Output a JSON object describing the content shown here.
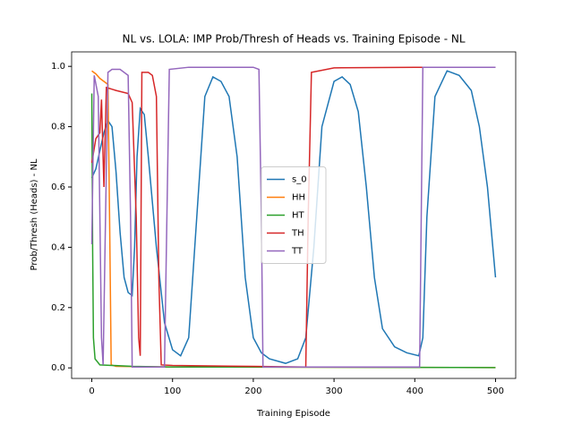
{
  "chart_data": {
    "type": "line",
    "title": "NL vs. LOLA: IMP Prob/Thresh of Heads vs. Training Episode - NL",
    "x_label": "Training Episode",
    "y_label": "Prob/Thresh (Heads) - NL",
    "xlim": [
      -25,
      525
    ],
    "ylim": [
      -0.035,
      1.048
    ],
    "xticks": [
      0,
      100,
      200,
      300,
      400,
      500
    ],
    "yticks": [
      {
        "value": 0,
        "label": "0.0"
      },
      {
        "value": 0.2,
        "label": "0.2"
      },
      {
        "value": 0.4,
        "label": "0.4"
      },
      {
        "value": 0.6,
        "label": "0.6"
      },
      {
        "value": 0.8,
        "label": "0.8"
      },
      {
        "value": 1,
        "label": "1.0"
      }
    ],
    "legend": "center",
    "series": [
      {
        "name": "s_0",
        "color": "#1f77b4",
        "x": [
          0,
          5,
          10,
          15,
          20,
          25,
          30,
          35,
          40,
          45,
          50,
          53,
          56,
          60,
          65,
          70,
          80,
          90,
          100,
          110,
          120,
          130,
          140,
          150,
          160,
          170,
          180,
          190,
          200,
          210,
          220,
          240,
          255,
          265,
          275,
          285,
          300,
          310,
          320,
          330,
          340,
          350,
          360,
          375,
          390,
          405,
          410,
          415,
          425,
          440,
          455,
          470,
          480,
          490,
          500
        ],
        "values": [
          0.63,
          0.66,
          0.72,
          0.78,
          0.82,
          0.8,
          0.65,
          0.45,
          0.3,
          0.25,
          0.24,
          0.4,
          0.7,
          0.86,
          0.84,
          0.7,
          0.4,
          0.15,
          0.06,
          0.04,
          0.1,
          0.5,
          0.9,
          0.965,
          0.95,
          0.9,
          0.7,
          0.3,
          0.1,
          0.05,
          0.03,
          0.015,
          0.03,
          0.1,
          0.4,
          0.8,
          0.95,
          0.965,
          0.94,
          0.85,
          0.6,
          0.3,
          0.13,
          0.07,
          0.05,
          0.04,
          0.1,
          0.5,
          0.9,
          0.985,
          0.97,
          0.92,
          0.8,
          0.6,
          0.3
        ]
      },
      {
        "name": "HH",
        "color": "#ff7f0e",
        "x": [
          0,
          5,
          10,
          15,
          20,
          22,
          24,
          30,
          100,
          500
        ],
        "values": [
          0.985,
          0.975,
          0.96,
          0.95,
          0.94,
          0.5,
          0.01,
          0.005,
          0.003,
          0.001
        ]
      },
      {
        "name": "HT",
        "color": "#2ca02c",
        "x": [
          0,
          1,
          2,
          4,
          10,
          50,
          100,
          500
        ],
        "values": [
          0.91,
          0.4,
          0.1,
          0.03,
          0.01,
          0.005,
          0.003,
          0.001
        ]
      },
      {
        "name": "TH",
        "color": "#d62728",
        "x": [
          0,
          5,
          10,
          12,
          15,
          18,
          30,
          45,
          50,
          55,
          58,
          60,
          62,
          70,
          75,
          80,
          83,
          86,
          100,
          200,
          265,
          268,
          272,
          300,
          400,
          500
        ],
        "values": [
          0.68,
          0.76,
          0.78,
          0.89,
          0.6,
          0.93,
          0.92,
          0.91,
          0.88,
          0.5,
          0.1,
          0.04,
          0.98,
          0.98,
          0.97,
          0.9,
          0.3,
          0.01,
          0.008,
          0.005,
          0.003,
          0.5,
          0.98,
          0.995,
          0.997,
          0.997
        ]
      },
      {
        "name": "TT",
        "color": "#9467bd",
        "x": [
          0,
          3,
          8,
          12,
          14,
          17,
          20,
          25,
          35,
          45,
          48,
          50,
          90,
          93,
          96,
          120,
          200,
          207,
          210,
          212,
          406,
          408,
          410,
          500
        ],
        "values": [
          0.41,
          0.97,
          0.9,
          0.1,
          0.01,
          0.5,
          0.98,
          0.99,
          0.99,
          0.97,
          0.5,
          0.003,
          0.003,
          0.5,
          0.99,
          0.997,
          0.997,
          0.99,
          0.5,
          0.003,
          0.003,
          0.5,
          0.997,
          0.997
        ]
      }
    ]
  }
}
